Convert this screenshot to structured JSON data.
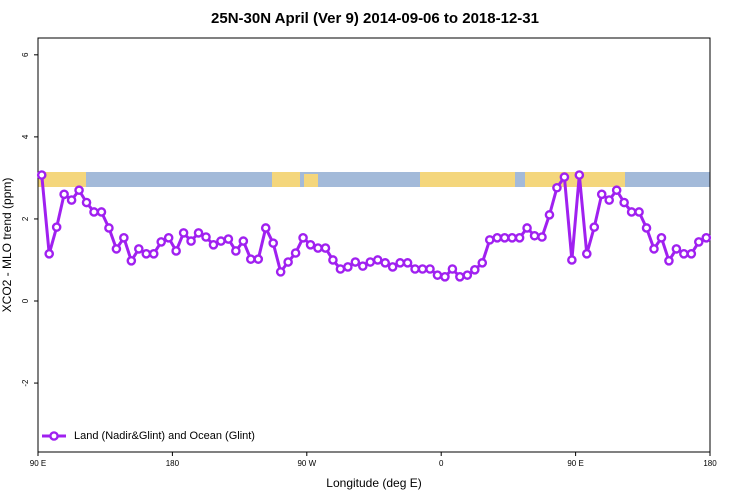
{
  "chart_data": {
    "type": "line",
    "title": "25N-30N April (Ver 9)   2014-09-06 to 2018-12-31",
    "x_label": "Longitude (deg E)",
    "y_label": "XCO2 - MLO trend (ppm)",
    "xlim": [
      90,
      540
    ],
    "ylim": [
      -3.68,
      6.41
    ],
    "xticks": [
      {
        "value": 90,
        "label": "90 E"
      },
      {
        "value": 180,
        "label": "180"
      },
      {
        "value": 270,
        "label": "90 W"
      },
      {
        "value": 360,
        "label": "0"
      },
      {
        "value": 450,
        "label": "90 E"
      },
      {
        "value": 540,
        "label": "180"
      }
    ],
    "yticks": [
      -2,
      0,
      2,
      4,
      6
    ],
    "legend": "bottom-left",
    "x": [
      92.5,
      97.5,
      102.5,
      107.5,
      112.5,
      117.5,
      122.5,
      127.5,
      132.5,
      137.5,
      142.5,
      147.5,
      152.5,
      157.5,
      162.5,
      167.5,
      172.5,
      177.5,
      182.5,
      187.5,
      192.5,
      197.5,
      202.5,
      207.5,
      212.5,
      217.5,
      222.5,
      227.5,
      232.5,
      237.5,
      242.5,
      247.5,
      252.5,
      257.5,
      262.5,
      267.5,
      272.5,
      277.5,
      282.5,
      287.5,
      292.5,
      297.5,
      302.5,
      307.5,
      312.5,
      317.5,
      322.5,
      327.5,
      332.5,
      337.5,
      342.5,
      347.5,
      352.5,
      357.5,
      362.5,
      367.5,
      372.5,
      377.5,
      382.5,
      387.5,
      392.5,
      397.5,
      402.5,
      407.5,
      412.5,
      417.5,
      422.5,
      427.5,
      432.5,
      437.5,
      442.5,
      447.5,
      452.5,
      457.5,
      462.5,
      467.5,
      472.5,
      477.5,
      482.5,
      487.5,
      492.5,
      497.5,
      502.5,
      507.5,
      512.5,
      517.5,
      522.5,
      527.5,
      532.5,
      537.5
    ],
    "series": [
      {
        "name": "Land (Nadir&Glint) and Ocean (Glint)",
        "color": "#a020f0",
        "values": [
          3.07,
          1.15,
          1.8,
          2.6,
          2.46,
          2.7,
          2.4,
          2.17,
          2.17,
          1.78,
          1.27,
          1.54,
          0.98,
          1.27,
          1.15,
          1.15,
          1.44,
          1.54,
          1.22,
          1.66,
          1.46,
          1.66,
          1.56,
          1.37,
          1.46,
          1.51,
          1.22,
          1.46,
          1.02,
          1.02,
          1.78,
          1.41,
          0.71,
          0.95,
          1.17,
          1.54,
          1.37,
          1.29,
          1.29,
          1.0,
          0.78,
          0.83,
          0.95,
          0.85,
          0.95,
          1.0,
          0.93,
          0.83,
          0.93,
          0.93,
          0.78,
          0.78,
          0.78,
          0.63,
          0.59,
          0.78,
          0.59,
          0.63,
          0.76,
          0.93,
          1.49,
          1.54,
          1.54,
          1.54,
          1.54,
          1.78,
          1.59,
          1.56,
          2.1,
          2.76,
          3.02,
          1.0,
          3.07,
          1.15,
          1.8,
          2.6,
          2.46,
          2.7,
          2.4,
          2.17,
          2.17,
          1.78,
          1.27,
          1.54,
          0.98,
          1.27,
          1.15,
          1.15,
          1.44,
          1.54
        ]
      }
    ]
  }
}
